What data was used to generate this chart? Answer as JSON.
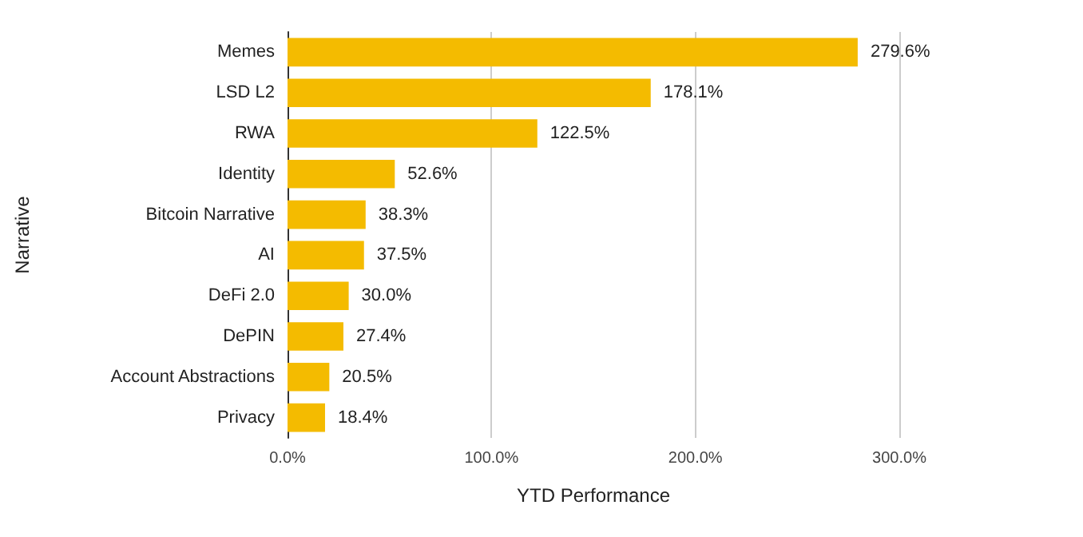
{
  "chart_data": {
    "type": "bar",
    "orientation": "horizontal",
    "xlabel": "YTD Performance",
    "ylabel": "Narrative",
    "categories": [
      "Memes",
      "LSD L2",
      "RWA",
      "Identity",
      "Bitcoin Narrative",
      "AI",
      "DeFi 2.0",
      "DePIN",
      "Account Abstractions",
      "Privacy"
    ],
    "values": [
      279.6,
      178.1,
      122.5,
      52.6,
      38.3,
      37.5,
      30.0,
      27.4,
      20.5,
      18.4
    ],
    "value_labels": [
      "279.6%",
      "178.1%",
      "122.5%",
      "52.6%",
      "38.3%",
      "37.5%",
      "30.0%",
      "27.4%",
      "20.5%",
      "18.4%"
    ],
    "color": "#f4bb00",
    "xlim": [
      0,
      300
    ],
    "xticks": [
      {
        "value": 0,
        "label": "0.0%"
      },
      {
        "value": 100,
        "label": "100.0%"
      },
      {
        "value": 200,
        "label": "200.0%"
      },
      {
        "value": 300,
        "label": "300.0%"
      }
    ],
    "grid": "x"
  }
}
